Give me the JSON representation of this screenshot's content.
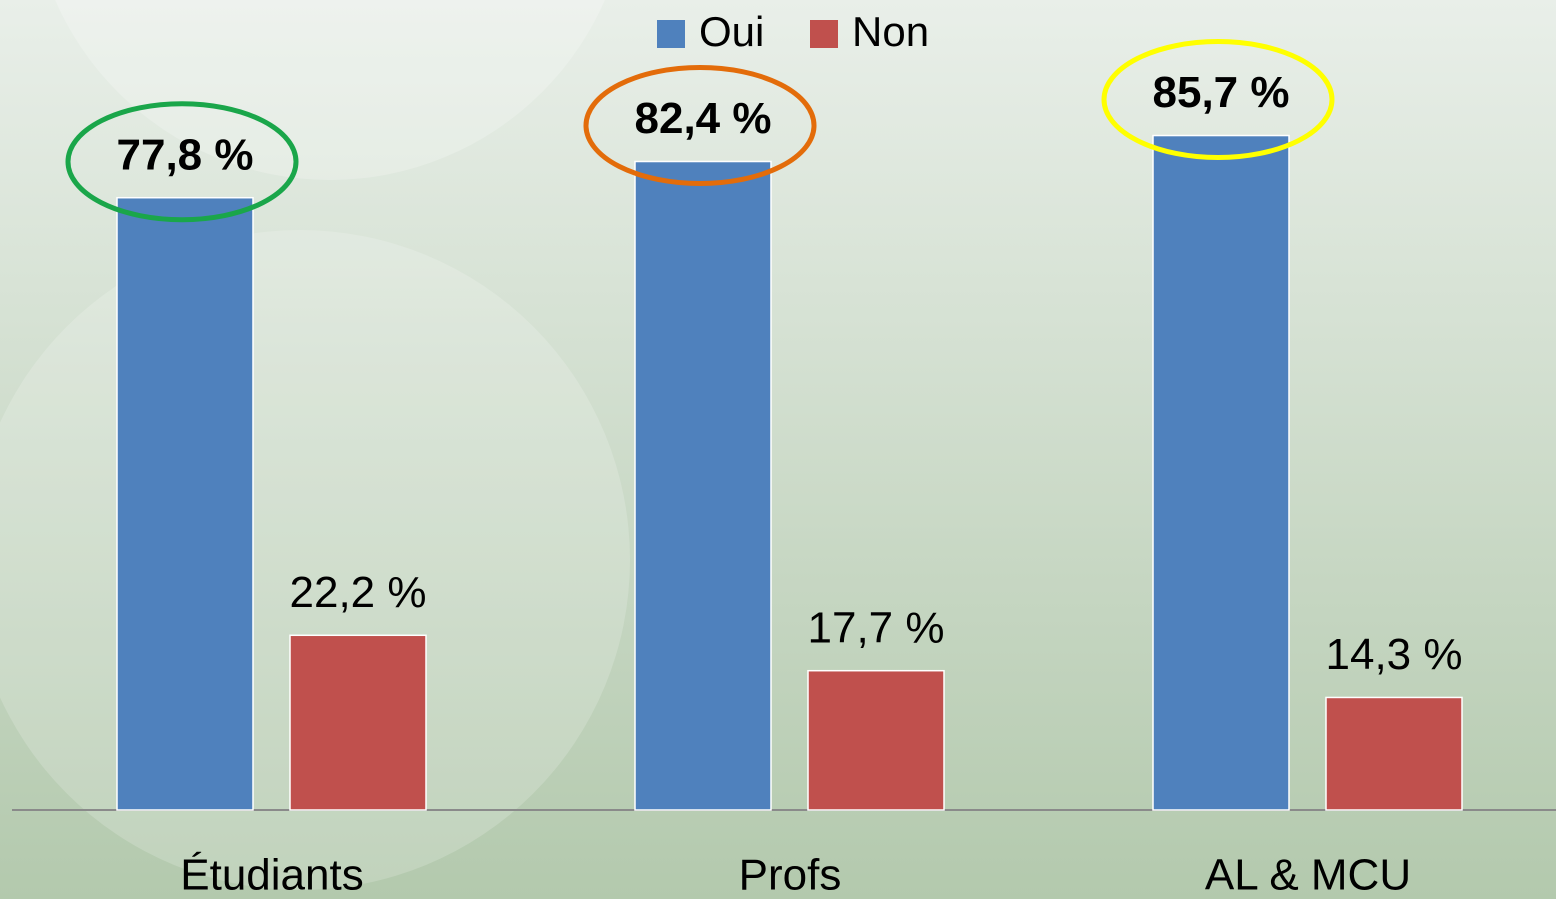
{
  "chart_data": {
    "type": "bar",
    "categories": [
      "Étudiants",
      "Profs",
      "AL & MCU"
    ],
    "series": [
      {
        "name": "Oui",
        "color": "#4f81bd",
        "values": [
          77.8,
          82.4,
          85.7
        ],
        "value_labels": [
          "77,8 %",
          "82,4 %",
          "85,7 %"
        ]
      },
      {
        "name": "Non",
        "color": "#c0504d",
        "values": [
          22.2,
          17.7,
          14.3
        ],
        "value_labels": [
          "22,2 %",
          "17,7 %",
          "14,3 %"
        ]
      }
    ],
    "ylim": [
      0,
      100
    ],
    "legend": "top",
    "highlight_colors": [
      "#1aa64a",
      "#e36c0a",
      "#ffff00"
    ]
  }
}
